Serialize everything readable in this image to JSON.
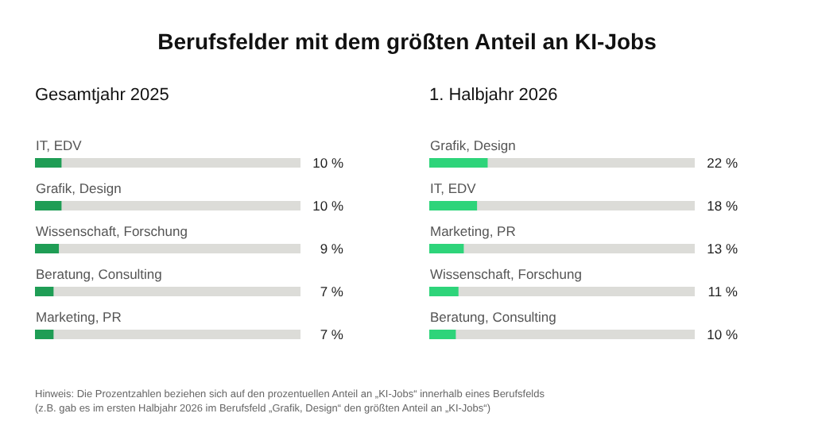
{
  "chart_data": [
    {
      "type": "bar",
      "orientation": "horizontal",
      "title": "Berufsfelder mit dem größten Anteil an KI-Jobs",
      "subtitle": "Gesamtjahr 2025",
      "categories": [
        "IT, EDV",
        "Grafik, Design",
        "Wissenschaft, Forschung",
        "Beratung, Consulting",
        "Marketing, PR"
      ],
      "series": [
        {
          "color": "#1f9d55",
          "values": [
            10,
            10,
            9,
            7,
            7
          ],
          "value_labels": [
            "10 %",
            "10 %",
            "9 %",
            "7 %",
            "7 %"
          ]
        }
      ],
      "xlim": [
        0,
        100
      ],
      "tick_labels": false,
      "annotations": [
        "Hinweis: Die Prozentzahlen beziehen sich auf den prozentuellen Anteil an „KI-Jobs“ innerhalb eines Berufsfelds",
        "(z.B. gab es im ersten Halbjahr 2026 im Berufsfeld „Grafik, Design“ den größten Anteil an „KI-Jobs“)"
      ]
    },
    {
      "type": "bar",
      "orientation": "horizontal",
      "subtitle": "1. Halbjahr 2026",
      "categories": [
        "Grafik, Design",
        "IT, EDV",
        "Marketing, PR",
        "Wissenschaft, Forschung",
        "Beratung, Consulting"
      ],
      "series": [
        {
          "color": "#2ed47a",
          "values": [
            22,
            18,
            13,
            11,
            10
          ],
          "value_labels": [
            "22 %",
            "18 %",
            "13 %",
            "11 %",
            "10 %"
          ]
        }
      ],
      "xlim": [
        0,
        100
      ],
      "tick_labels": false
    }
  ]
}
